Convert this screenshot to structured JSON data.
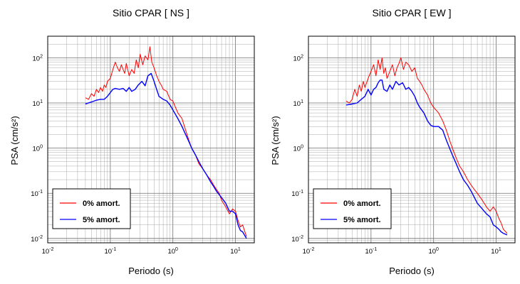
{
  "chart_data": [
    {
      "type": "line",
      "title": "Sitio CPAR [ NS ]",
      "xlabel": "Periodo (s)",
      "ylabel": "PSA (cm/s²)",
      "xscale": "log",
      "yscale": "log",
      "xlim": [
        0.01,
        20
      ],
      "ylim": [
        0.008,
        300
      ],
      "xticks": [
        0.01,
        0.1,
        1,
        10
      ],
      "xtick_labels": [
        {
          "base": "10",
          "exp": "-2"
        },
        {
          "base": "10",
          "exp": "-1"
        },
        {
          "base": "10",
          "exp": "0"
        },
        {
          "base": "10",
          "exp": "1"
        }
      ],
      "yticks": [
        0.01,
        0.1,
        1,
        10,
        100
      ],
      "ytick_labels": [
        {
          "base": "10",
          "exp": "-2"
        },
        {
          "base": "10",
          "exp": "-1"
        },
        {
          "base": "10",
          "exp": "0"
        },
        {
          "base": "10",
          "exp": "1"
        },
        {
          "base": "10",
          "exp": "2"
        }
      ],
      "grid": true,
      "legend_position": "bottom-left",
      "series": [
        {
          "name": "0% amort.",
          "color": "#ff0000",
          "x": [
            0.04,
            0.045,
            0.05,
            0.055,
            0.06,
            0.065,
            0.07,
            0.075,
            0.08,
            0.085,
            0.09,
            0.1,
            0.11,
            0.12,
            0.13,
            0.14,
            0.15,
            0.16,
            0.17,
            0.18,
            0.2,
            0.22,
            0.24,
            0.26,
            0.28,
            0.3,
            0.33,
            0.36,
            0.4,
            0.43,
            0.46,
            0.5,
            0.55,
            0.6,
            0.65,
            0.7,
            0.8,
            0.9,
            1.0,
            1.1,
            1.2,
            1.4,
            1.6,
            1.8,
            2.0,
            2.3,
            2.6,
            3.0,
            3.5,
            4.0,
            4.5,
            5.0,
            5.5,
            6.0,
            7.0,
            8.0,
            9.0,
            10,
            11,
            12,
            13,
            15
          ],
          "y": [
            13,
            12,
            16,
            14,
            20,
            17,
            22,
            18,
            25,
            22,
            30,
            35,
            55,
            80,
            60,
            50,
            70,
            55,
            45,
            75,
            40,
            55,
            45,
            90,
            60,
            120,
            70,
            110,
            90,
            175,
            80,
            60,
            40,
            30,
            25,
            20,
            18,
            12,
            11,
            8,
            6,
            4.5,
            2.5,
            1.5,
            1.0,
            0.7,
            0.45,
            0.35,
            0.25,
            0.2,
            0.15,
            0.12,
            0.1,
            0.07,
            0.05,
            0.035,
            0.045,
            0.04,
            0.025,
            0.018,
            0.02,
            0.011
          ]
        },
        {
          "name": "5% amort.",
          "color": "#0000ff",
          "x": [
            0.04,
            0.05,
            0.06,
            0.07,
            0.08,
            0.09,
            0.1,
            0.11,
            0.12,
            0.14,
            0.16,
            0.18,
            0.2,
            0.22,
            0.25,
            0.28,
            0.32,
            0.36,
            0.4,
            0.45,
            0.5,
            0.55,
            0.6,
            0.7,
            0.8,
            0.9,
            1.0,
            1.2,
            1.4,
            1.6,
            1.8,
            2.0,
            2.3,
            2.6,
            3.0,
            3.5,
            4.0,
            4.5,
            5.0,
            6.0,
            7.0,
            8.0,
            9.0,
            10,
            11,
            12,
            13,
            15
          ],
          "y": [
            9.5,
            10.5,
            11.5,
            12,
            12,
            14,
            17,
            20,
            21,
            20,
            21,
            18,
            22,
            18,
            20,
            25,
            30,
            24,
            40,
            45,
            30,
            20,
            14,
            12,
            11,
            9,
            7,
            4.5,
            3,
            2,
            1.4,
            1.0,
            0.7,
            0.5,
            0.35,
            0.25,
            0.18,
            0.14,
            0.11,
            0.08,
            0.06,
            0.04,
            0.04,
            0.035,
            0.02,
            0.015,
            0.014,
            0.01
          ]
        }
      ]
    },
    {
      "type": "line",
      "title": "Sitio CPAR [ EW ]",
      "xlabel": "Periodo (s)",
      "ylabel": "PSA (cm/s²)",
      "xscale": "log",
      "yscale": "log",
      "xlim": [
        0.01,
        20
      ],
      "ylim": [
        0.008,
        300
      ],
      "xticks": [
        0.01,
        0.1,
        1,
        10
      ],
      "xtick_labels": [
        {
          "base": "10",
          "exp": "-2"
        },
        {
          "base": "10",
          "exp": "-1"
        },
        {
          "base": "10",
          "exp": "0"
        },
        {
          "base": "10",
          "exp": "1"
        }
      ],
      "yticks": [
        0.01,
        0.1,
        1,
        10,
        100
      ],
      "ytick_labels": [
        {
          "base": "10",
          "exp": "-2"
        },
        {
          "base": "10",
          "exp": "-1"
        },
        {
          "base": "10",
          "exp": "0"
        },
        {
          "base": "10",
          "exp": "1"
        },
        {
          "base": "10",
          "exp": "2"
        }
      ],
      "grid": true,
      "legend_position": "bottom-left",
      "series": [
        {
          "name": "0% amort.",
          "color": "#ff0000",
          "x": [
            0.04,
            0.045,
            0.05,
            0.055,
            0.06,
            0.065,
            0.07,
            0.075,
            0.08,
            0.09,
            0.1,
            0.11,
            0.12,
            0.13,
            0.14,
            0.15,
            0.16,
            0.17,
            0.18,
            0.2,
            0.22,
            0.24,
            0.26,
            0.28,
            0.3,
            0.33,
            0.36,
            0.4,
            0.45,
            0.5,
            0.55,
            0.6,
            0.65,
            0.7,
            0.8,
            0.9,
            1.0,
            1.2,
            1.4,
            1.6,
            1.8,
            2.0,
            2.3,
            2.6,
            3.0,
            3.5,
            4.0,
            4.5,
            5.0,
            6.0,
            7.0,
            8.0,
            9.0,
            10,
            11,
            12,
            13,
            15
          ],
          "y": [
            11,
            10,
            12,
            20,
            14,
            25,
            18,
            30,
            22,
            35,
            50,
            70,
            40,
            90,
            55,
            100,
            45,
            60,
            35,
            50,
            70,
            40,
            60,
            75,
            100,
            55,
            80,
            70,
            50,
            60,
            35,
            30,
            25,
            20,
            15,
            10,
            8,
            6,
            4,
            2.5,
            1.5,
            1.0,
            0.6,
            0.4,
            0.3,
            0.2,
            0.15,
            0.12,
            0.1,
            0.07,
            0.05,
            0.04,
            0.05,
            0.04,
            0.028,
            0.022,
            0.016,
            0.013
          ]
        },
        {
          "name": "5% amort.",
          "color": "#0000ff",
          "x": [
            0.04,
            0.05,
            0.06,
            0.07,
            0.08,
            0.09,
            0.1,
            0.11,
            0.12,
            0.13,
            0.14,
            0.15,
            0.16,
            0.18,
            0.2,
            0.22,
            0.25,
            0.28,
            0.32,
            0.36,
            0.4,
            0.45,
            0.5,
            0.55,
            0.6,
            0.7,
            0.8,
            0.9,
            1.0,
            1.2,
            1.4,
            1.6,
            1.8,
            2.0,
            2.3,
            2.6,
            3.0,
            3.5,
            4.0,
            4.5,
            5.0,
            6.0,
            7.0,
            8.0,
            9.0,
            10,
            11,
            12,
            13,
            15
          ],
          "y": [
            9,
            9.5,
            10,
            12,
            14,
            20,
            15,
            20,
            22,
            28,
            32,
            32,
            20,
            18,
            25,
            20,
            30,
            25,
            28,
            20,
            22,
            18,
            14,
            10,
            8,
            6,
            4,
            3.2,
            3,
            3,
            2.5,
            1.5,
            1.0,
            0.7,
            0.45,
            0.3,
            0.2,
            0.15,
            0.11,
            0.08,
            0.06,
            0.045,
            0.035,
            0.03,
            0.02,
            0.018,
            0.016,
            0.014,
            0.013,
            0.012
          ]
        }
      ]
    }
  ]
}
